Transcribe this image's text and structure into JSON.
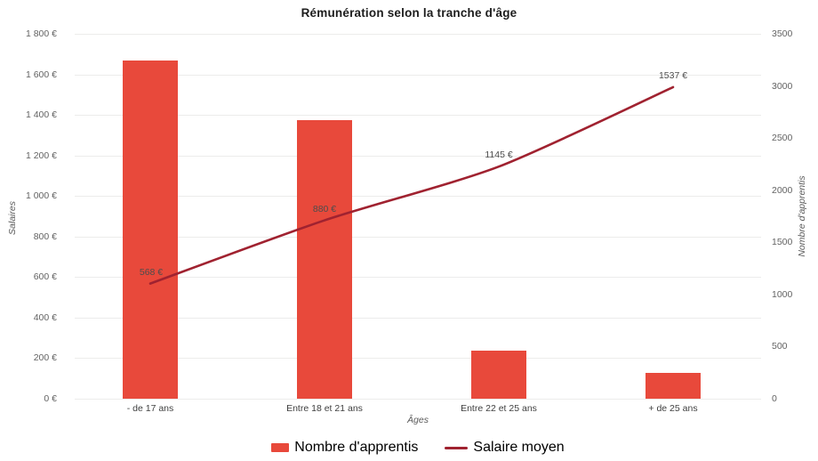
{
  "title": "Rémunération selon la tranche d'âge",
  "colors": {
    "bar": "#e8493b",
    "line": "#a02230",
    "grid": "#ececeb",
    "title_text": "#1d1d1d",
    "tick_text": "#636363",
    "axis_title_text": "#5a5a5a",
    "data_label_text": "#4d4d4d"
  },
  "chart_data": {
    "type": "bar+line combo",
    "title": "Rémunération selon la tranche d'âge",
    "categories": [
      "- de 17 ans",
      "Entre 18 et 21 ans",
      "Entre 22 et 25 ans",
      "+ de 25 ans"
    ],
    "series": [
      {
        "name": "Nombre d'apprentis",
        "type": "bar",
        "axis": "right",
        "values": [
          3240,
          2670,
          460,
          250
        ],
        "color": "#e8493b"
      },
      {
        "name": "Salaire moyen",
        "type": "line",
        "axis": "left",
        "values": [
          568,
          880,
          1145,
          1537
        ],
        "labels": [
          "568 €",
          "880 €",
          "1145 €",
          "1537 €"
        ],
        "color": "#a02230"
      }
    ],
    "xlabel": "Âges",
    "left_axis": {
      "title": "Salaires",
      "min": 0,
      "max": 1800,
      "tick_labels": [
        "0 €",
        "200 €",
        "400 €",
        "600 €",
        "800 €",
        "1 000 €",
        "1 200 €",
        "1 400 €",
        "1 600 €",
        "1 800 €"
      ]
    },
    "right_axis": {
      "title": "Nombre d'apprentis",
      "min": 0,
      "max": 3500,
      "tick_labels": [
        "0",
        "500",
        "1000",
        "1500",
        "2000",
        "2500",
        "3000",
        "3500"
      ]
    },
    "grid": true,
    "legend_position": "bottom",
    "legend": [
      {
        "label": "Nombre d'apprentis",
        "swatch": "bar"
      },
      {
        "label": "Salaire moyen",
        "swatch": "line"
      }
    ]
  }
}
